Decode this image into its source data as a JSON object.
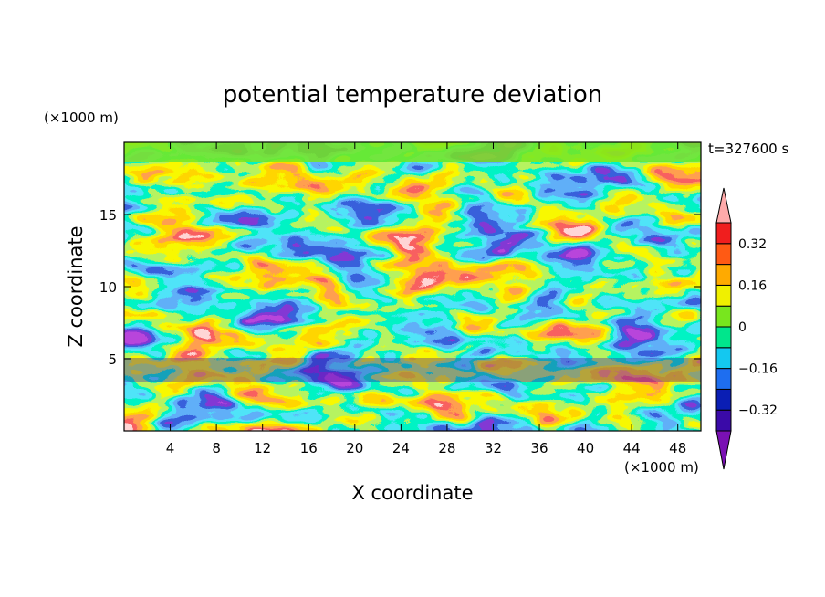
{
  "chart_data": {
    "type": "heatmap",
    "title": "potential temperature deviation",
    "xlabel": "X coordinate",
    "ylabel": "Z coordinate",
    "x_unit": "(×1000 m)",
    "y_unit": "(×1000 m)",
    "time_label": "t=327600 s",
    "xlim": [
      0,
      50
    ],
    "ylim": [
      0,
      20
    ],
    "x_ticks": [
      4,
      8,
      12,
      16,
      20,
      24,
      28,
      32,
      36,
      40,
      44,
      48
    ],
    "y_ticks": [
      5,
      10,
      15
    ],
    "colorbar": {
      "levels": [
        -0.4,
        -0.32,
        -0.24,
        -0.16,
        -0.08,
        0,
        0.08,
        0.16,
        0.24,
        0.32,
        0.4
      ],
      "colors": [
        "#7a10b4",
        "#3a0aa8",
        "#0a1eb4",
        "#1e6ef0",
        "#14c8f0",
        "#00e68c",
        "#78e61e",
        "#f0f000",
        "#ffaa00",
        "#ff5a14",
        "#f01e1e",
        "#ffaaaa"
      ],
      "tick_labels": [
        "0.32",
        "0.16",
        "0",
        "−0.16",
        "−0.32"
      ],
      "tick_values": [
        0.32,
        0.16,
        0,
        -0.16,
        -0.32
      ]
    }
  }
}
